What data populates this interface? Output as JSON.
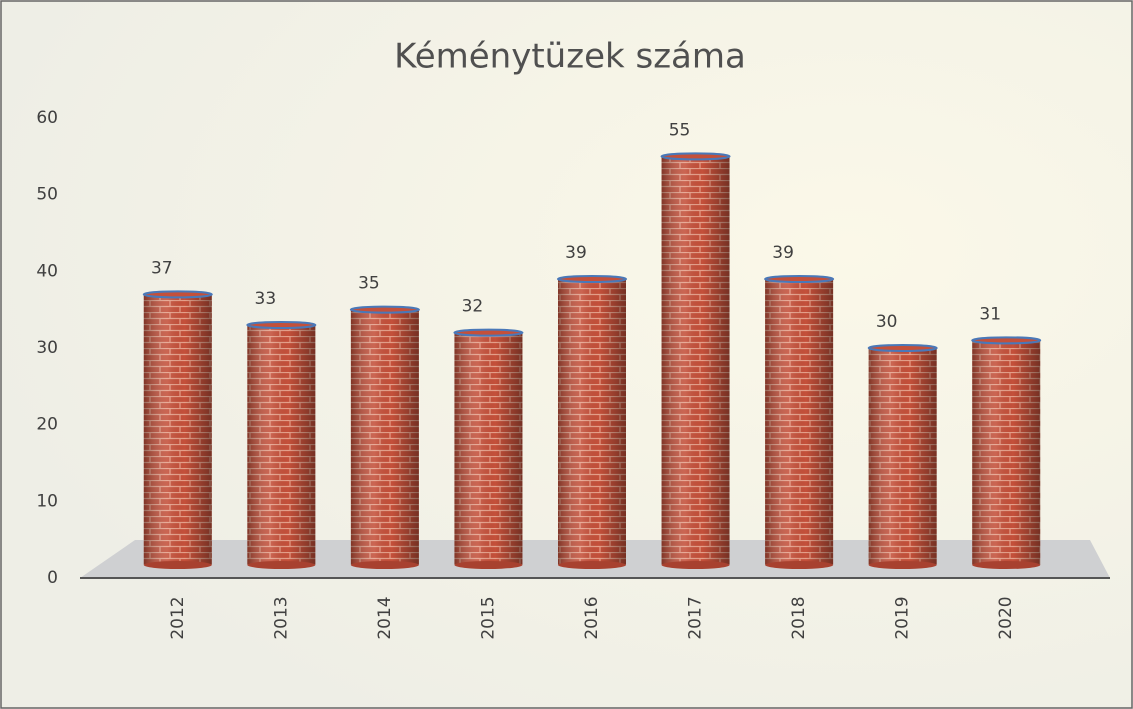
{
  "chart_data": {
    "type": "bar",
    "title": "Kéménytüzek száma",
    "categories": [
      "2012",
      "2013",
      "2014",
      "2015",
      "2016",
      "2017",
      "2018",
      "2019",
      "2020"
    ],
    "values": [
      37,
      33,
      35,
      32,
      39,
      55,
      39,
      30,
      31
    ],
    "color": "#c4503a",
    "ylim": [
      0,
      60
    ],
    "yticks": [
      0,
      10,
      20,
      30,
      40,
      50,
      60
    ],
    "grid": false
  }
}
